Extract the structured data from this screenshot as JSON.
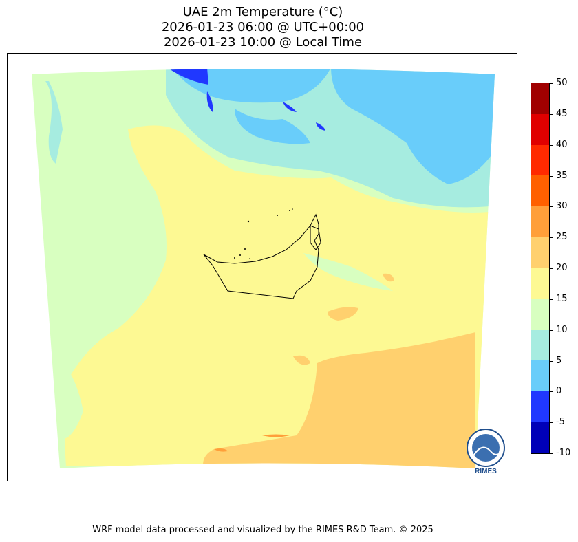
{
  "title": {
    "line1": "UAE 2m Temperature (°C)",
    "line2": "2026-01-23 06:00 @ UTC+00:00",
    "line3": "2026-01-23 10:00 @ Local Time"
  },
  "colorbar": {
    "ticks": [
      "50",
      "45",
      "40",
      "35",
      "30",
      "25",
      "20",
      "15",
      "10",
      "5",
      "0",
      "-5",
      "-10"
    ],
    "bands": [
      {
        "range": "45-50",
        "color": "#a00000"
      },
      {
        "range": "40-45",
        "color": "#e00000"
      },
      {
        "range": "35-40",
        "color": "#ff2a00"
      },
      {
        "range": "30-35",
        "color": "#ff6000"
      },
      {
        "range": "25-30",
        "color": "#ff9f3a"
      },
      {
        "range": "20-25",
        "color": "#ffd06e"
      },
      {
        "range": "15-20",
        "color": "#fdf993"
      },
      {
        "range": "10-15",
        "color": "#d8ffc0"
      },
      {
        "range": "5-10",
        "color": "#a6ece0"
      },
      {
        "range": "0-5",
        "color": "#69cdfa"
      },
      {
        "range": "-5-0",
        "color": "#2038ff"
      },
      {
        "range": "-10--5",
        "color": "#0000b8"
      }
    ]
  },
  "map": {
    "region": "UAE",
    "variable": "2m Temperature",
    "border_color": "#000000"
  },
  "logo": {
    "text": "RIMES",
    "icon": "rimes-logo-icon",
    "color": "#1f4e8c"
  },
  "footer": "WRF model data processed and visualized by the RIMES R&D Team. © 2025"
}
